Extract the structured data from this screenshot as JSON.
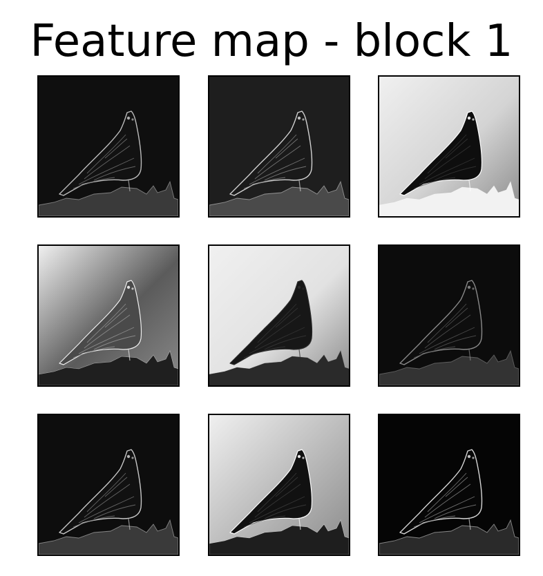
{
  "title": "Feature map - block 1",
  "panels": [
    {
      "id": "fm-1",
      "style": "edge",
      "background": "#0f0f0f",
      "fill": "#121212",
      "stroke": "#bcbcbc",
      "texture": "#7a7a7a",
      "ground": "#3a3a3a"
    },
    {
      "id": "fm-2",
      "style": "edge",
      "background": "#1e1e1e",
      "fill": "#1a1a1a",
      "stroke": "#d2d2d2",
      "texture": "#8a8a8a",
      "ground": "#4a4a4a"
    },
    {
      "id": "fm-3",
      "style": "silhouette-light",
      "background": "#d4d4d4",
      "fill": "#0e0e0e",
      "stroke": "#ffffff",
      "texture": "#3a3a3a",
      "ground": "#f2f2f2"
    },
    {
      "id": "fm-4",
      "style": "silhouette-mid",
      "background": "#5b5b5b",
      "fill": "#4a4a4a",
      "stroke": "#f0f0f0",
      "texture": "#9a9a9a",
      "ground": "#1f1f1f"
    },
    {
      "id": "fm-5",
      "style": "silhouette-light",
      "background": "#e2e2e2",
      "fill": "#171717",
      "stroke": "#2a2a2a",
      "texture": "#3a3a3a",
      "ground": "#2a2a2a"
    },
    {
      "id": "fm-6",
      "style": "edge",
      "background": "#0c0c0c",
      "fill": "#0e0e0e",
      "stroke": "#8a8a8a",
      "texture": "#5a5a5a",
      "ground": "#333333"
    },
    {
      "id": "fm-7",
      "style": "edge",
      "background": "#0d0d0d",
      "fill": "#111111",
      "stroke": "#c8c8c8",
      "texture": "#7a7a7a",
      "ground": "#3a3a3a"
    },
    {
      "id": "fm-8",
      "style": "silhouette-light",
      "background": "#b8b8b8",
      "fill": "#111111",
      "stroke": "#ffffff",
      "texture": "#404040",
      "ground": "#1e1e1e"
    },
    {
      "id": "fm-9",
      "style": "edge",
      "background": "#050505",
      "fill": "#070707",
      "stroke": "#d6d6d6",
      "texture": "#8a8a8a",
      "ground": "#2a2a2a"
    }
  ]
}
